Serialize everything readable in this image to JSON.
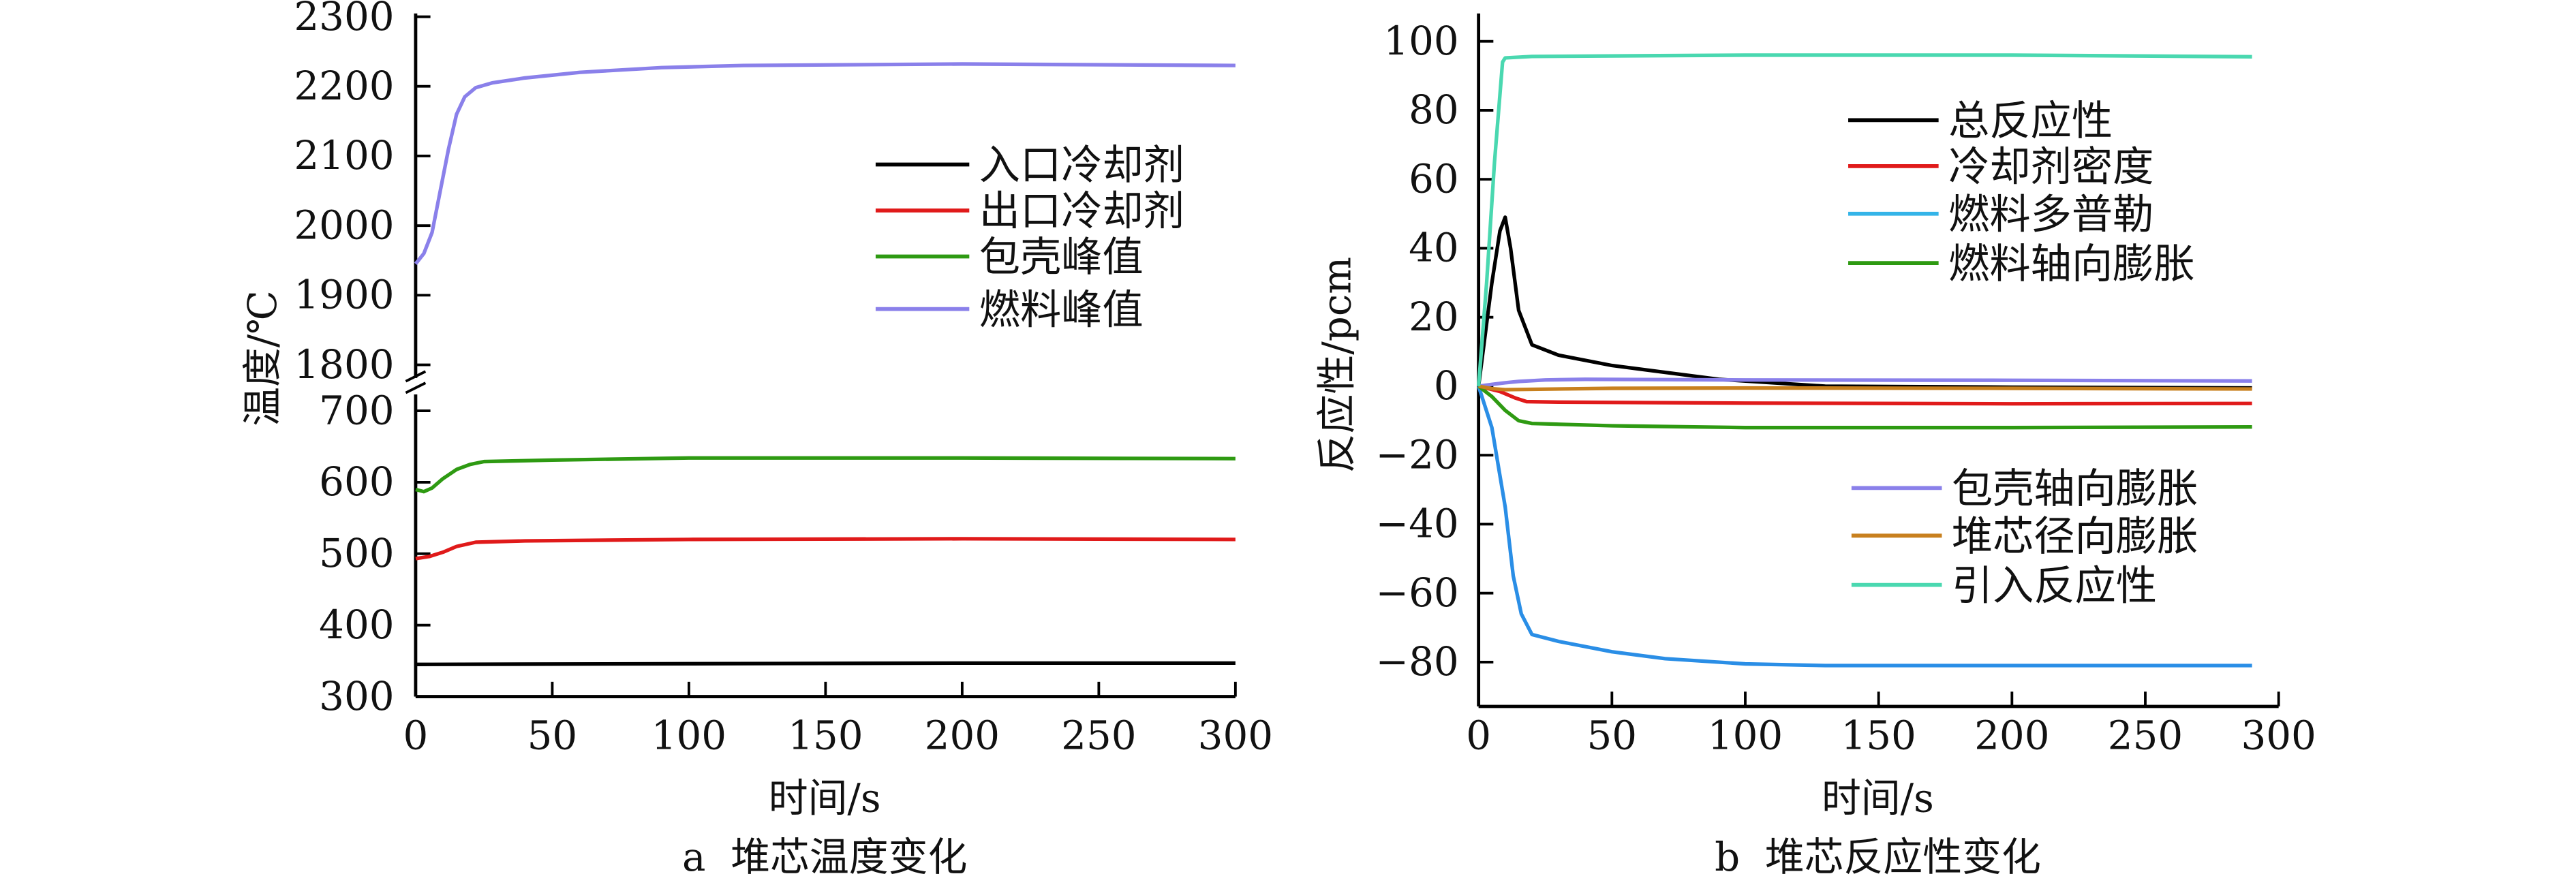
{
  "chart_data": [
    {
      "type": "line",
      "caption": "a  堆芯温度变化",
      "xlabel": "时间/s",
      "ylabel": "温度/℃",
      "xlim": [
        0,
        300
      ],
      "ylim": [
        300,
        2300
      ],
      "y_axis_break": [
        700,
        1800
      ],
      "xticks": [
        "0",
        "50",
        "100",
        "150",
        "200",
        "250",
        "300"
      ],
      "yticks_upper": [
        "1800",
        "1900",
        "2000",
        "2100",
        "2200",
        "2300"
      ],
      "yticks_lower": [
        "300",
        "400",
        "500",
        "600",
        "700"
      ],
      "legend_position": "right-upper",
      "series": [
        {
          "name": "入口冷却剂",
          "color": "#000000",
          "x": [
            0,
            100,
            200,
            300
          ],
          "y": [
            345,
            346,
            347,
            347
          ]
        },
        {
          "name": "出口冷却剂",
          "color": "#e01a1a",
          "x": [
            0,
            5,
            10,
            15,
            22,
            40,
            100,
            200,
            300
          ],
          "y": [
            493,
            496,
            502,
            510,
            516,
            518,
            520,
            521,
            520
          ]
        },
        {
          "name": "包壳峰值",
          "color": "#2e9a12",
          "x": [
            0,
            3,
            6,
            10,
            15,
            20,
            25,
            50,
            100,
            200,
            300
          ],
          "y": [
            590,
            587,
            592,
            605,
            618,
            625,
            629,
            631,
            634,
            634,
            633
          ]
        },
        {
          "name": "燃料峰值",
          "color": "#8a80ea",
          "x": [
            0,
            3,
            6,
            9,
            12,
            15,
            18,
            22,
            28,
            40,
            60,
            90,
            120,
            200,
            300
          ],
          "y": [
            1945,
            1960,
            1990,
            2050,
            2110,
            2160,
            2185,
            2198,
            2205,
            2212,
            2220,
            2227,
            2230,
            2232,
            2230
          ]
        }
      ]
    },
    {
      "type": "line",
      "caption": "b  堆芯反应性变化",
      "xlabel": "时间/s",
      "ylabel": "反应性/pcm",
      "xlim": [
        0,
        300
      ],
      "ylim": [
        -90,
        108
      ],
      "xticks": [
        "0",
        "50",
        "100",
        "150",
        "200",
        "250",
        "300"
      ],
      "yticks": [
        "100",
        "80",
        "60",
        "40",
        "20",
        "0",
        "-20",
        "-40",
        "-60",
        "-80"
      ],
      "legend_position": "right",
      "series": [
        {
          "name": "总反应性",
          "color": "#000000",
          "x": [
            0,
            5,
            8,
            10,
            12,
            15,
            20,
            30,
            50,
            70,
            90,
            110,
            130,
            200,
            290
          ],
          "y": [
            0,
            30,
            45,
            49,
            40,
            22,
            12,
            9,
            6,
            4,
            2,
            1,
            0,
            -0.3,
            -0.5
          ]
        },
        {
          "name": "冷却剂密度",
          "color": "#e01a1a",
          "x": [
            0,
            8,
            14,
            18,
            30,
            100,
            200,
            290
          ],
          "y": [
            0,
            -1.5,
            -3.5,
            -4.5,
            -4.6,
            -4.9,
            -5.1,
            -5
          ]
        },
        {
          "name": "燃料多普勒",
          "color": "#2a8ee6",
          "x": [
            0,
            5,
            10,
            13,
            16,
            20,
            30,
            50,
            70,
            100,
            130,
            200,
            290
          ],
          "y": [
            0,
            -12,
            -35,
            -55,
            -66,
            -72,
            -74,
            -77,
            -79,
            -80.5,
            -81,
            -81,
            -81
          ]
        },
        {
          "name": "燃料轴向膨胀",
          "color": "#2e9a12",
          "x": [
            0,
            5,
            10,
            15,
            20,
            50,
            100,
            200,
            290
          ],
          "y": [
            0,
            -3,
            -7,
            -10,
            -10.8,
            -11.5,
            -12,
            -12,
            -11.8
          ]
        },
        {
          "name": "包壳轴向膨胀",
          "color": "#8a80ea",
          "x": [
            0,
            5,
            10,
            15,
            25,
            40,
            100,
            200,
            290
          ],
          "y": [
            0,
            0.5,
            1,
            1.4,
            1.8,
            2,
            1.8,
            1.7,
            1.5
          ]
        },
        {
          "name": "堆芯径向膨胀",
          "color": "#c8801e",
          "x": [
            0,
            5,
            10,
            20,
            50,
            100,
            200,
            290
          ],
          "y": [
            0,
            -0.7,
            -1,
            -0.9,
            -0.6,
            -0.5,
            -0.6,
            -0.8
          ]
        },
        {
          "name": "引入反应性",
          "color": "#4ad8b0",
          "x": [
            0,
            3,
            6,
            9,
            10,
            20,
            100,
            200,
            290
          ],
          "y": [
            0,
            30,
            65,
            94,
            95.2,
            95.6,
            96,
            96,
            95.5
          ]
        }
      ]
    }
  ]
}
